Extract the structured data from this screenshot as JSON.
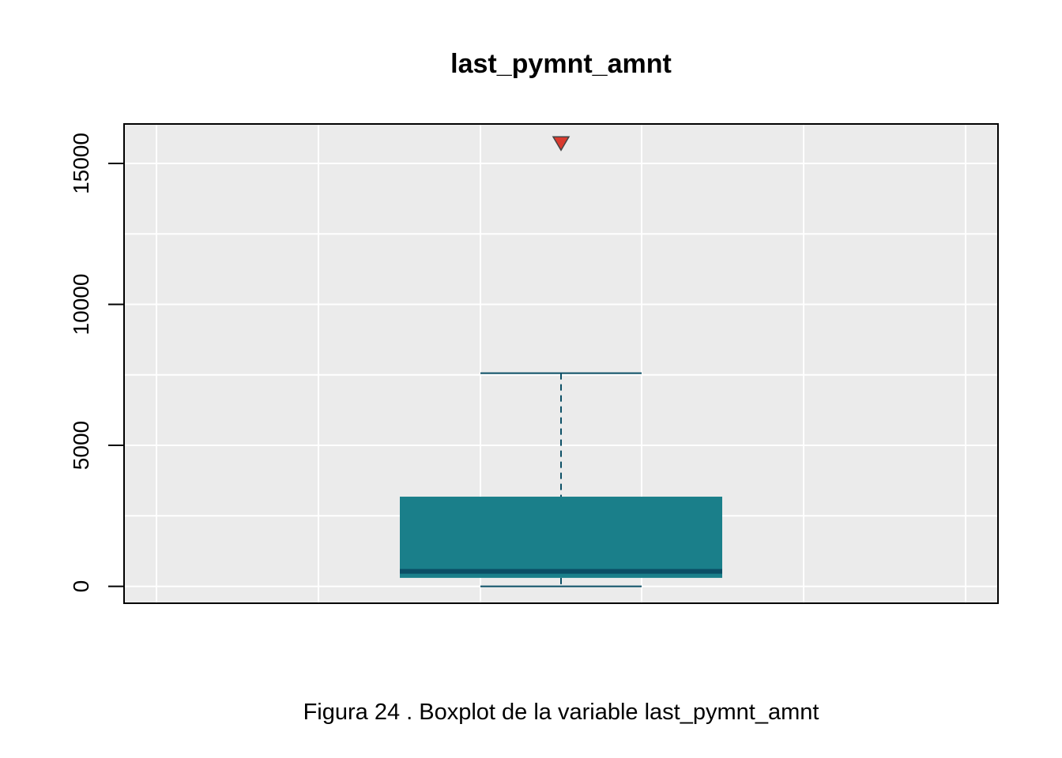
{
  "chart_data": {
    "type": "boxplot",
    "title": "last_pymnt_amnt",
    "caption": "Figura  24 . Boxplot de la variable  last_pymnt_amnt",
    "xlabel": "",
    "ylabel": "",
    "ylim": [
      -600,
      16400
    ],
    "yticks": [
      0,
      5000,
      10000,
      15000
    ],
    "ytick_labels": [
      "0",
      "5000",
      "10000",
      "15000"
    ],
    "grid": true,
    "box": {
      "min": 0,
      "q1": 300,
      "median": 530,
      "q3": 3180,
      "max": 7560,
      "outliers": [
        15720
      ]
    },
    "colors": {
      "panel": "#EBEBEB",
      "grid": "#FFFFFF",
      "box_fill": "#1A7F8A",
      "median": "#0B4F66",
      "whisker": "#0B4F66",
      "outlier_fill": "#D93A2E",
      "outlier_stroke": "#444444"
    }
  }
}
